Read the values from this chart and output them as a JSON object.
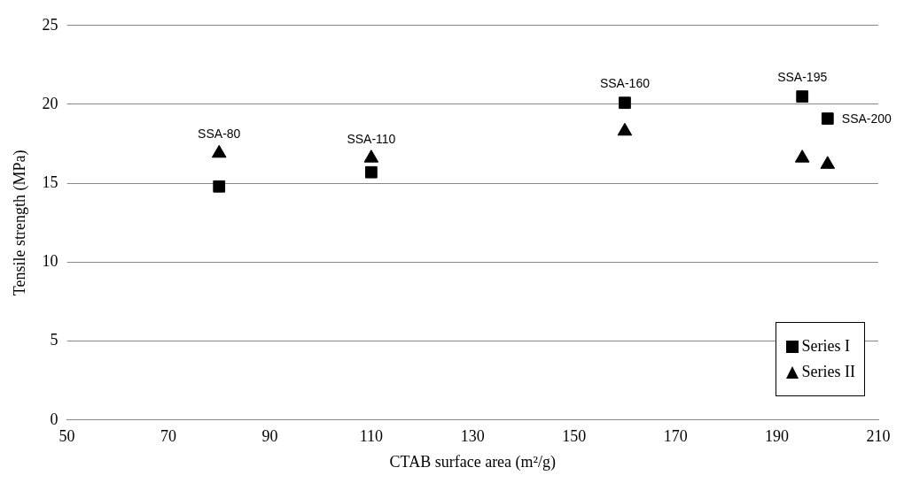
{
  "chart_data": {
    "type": "scatter",
    "xlabel": "CTAB surface area (m²/g)",
    "ylabel": "Tensile strength (MPa)",
    "series": [
      {
        "name": "Series I",
        "color": "#000000",
        "marker": "square",
        "x": [
          80,
          110,
          160,
          195,
          200
        ],
        "values": [
          14.8,
          15.7,
          20.1,
          20.5,
          19.1
        ]
      },
      {
        "name": "Series II",
        "color": "#000000",
        "marker": "triangle",
        "x": [
          80,
          110,
          160,
          195,
          200
        ],
        "values": [
          16.9,
          16.6,
          18.3,
          16.6,
          16.2
        ]
      }
    ],
    "xlim": [
      50,
      210
    ],
    "xticks": [
      50,
      70,
      90,
      110,
      130,
      150,
      170,
      190,
      210
    ],
    "ylim": [
      0,
      25
    ],
    "yticks": [
      0,
      5,
      10,
      15,
      20,
      25
    ],
    "grid": "y",
    "legend": "bottom right",
    "annotations": [
      {
        "text": "SSA-80",
        "x": 80,
        "y": 16.9
      },
      {
        "text": "SSA-110",
        "x": 110,
        "y": 16.6
      },
      {
        "text": "SSA-160",
        "x": 160,
        "y": 20.1
      },
      {
        "text": "SSA-195",
        "x": 195,
        "y": 20.5
      },
      {
        "text": "SSA-200",
        "x": 200,
        "y": 19.1
      }
    ]
  }
}
